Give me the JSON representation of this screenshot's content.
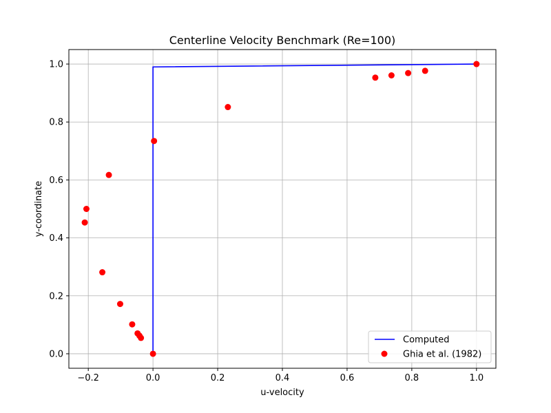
{
  "chart_data": {
    "type": "line",
    "title": "Centerline Velocity Benchmark (Re=100)",
    "xlabel": "u-velocity",
    "ylabel": "y-coordinate",
    "xlim": [
      -0.26,
      1.06
    ],
    "ylim": [
      -0.05,
      1.05
    ],
    "xticks": [
      -0.2,
      0.0,
      0.2,
      0.4,
      0.6,
      0.8,
      1.0
    ],
    "yticks": [
      0.0,
      0.2,
      0.4,
      0.6,
      0.8,
      1.0
    ],
    "xtick_labels": [
      "−0.2",
      "0.0",
      "0.2",
      "0.4",
      "0.6",
      "0.8",
      "1.0"
    ],
    "ytick_labels": [
      "0.0",
      "0.2",
      "0.4",
      "0.6",
      "0.8",
      "1.0"
    ],
    "grid": true,
    "legend_position": "lower-right",
    "series": [
      {
        "name": "Computed",
        "style": "line",
        "color": "#0000ff",
        "x": [
          0.0,
          0.0,
          0.0,
          1.0
        ],
        "y": [
          0.0,
          0.5,
          0.99,
          1.0
        ]
      },
      {
        "name": "Ghia et al. (1982)",
        "style": "scatter",
        "color": "#ff0000",
        "x": [
          0.0,
          -0.0372,
          -0.0419,
          -0.0477,
          -0.0643,
          -0.1015,
          -0.1566,
          -0.2109,
          -0.2058,
          -0.1364,
          0.0033,
          0.2315,
          0.6872,
          0.7372,
          0.7887,
          0.8412,
          1.0
        ],
        "y": [
          0.0,
          0.0547,
          0.0625,
          0.0703,
          0.1016,
          0.1719,
          0.2813,
          0.4531,
          0.5,
          0.6172,
          0.7344,
          0.8516,
          0.9531,
          0.9609,
          0.9688,
          0.9766,
          1.0
        ]
      }
    ]
  }
}
